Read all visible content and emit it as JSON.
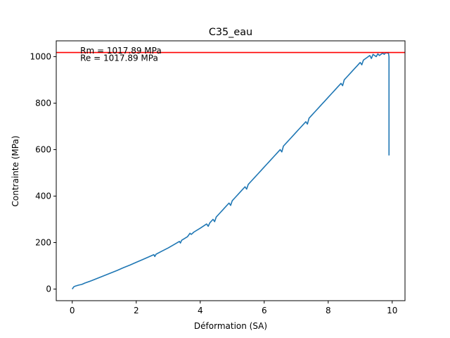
{
  "chart_data": {
    "type": "line",
    "title": "C35_eau",
    "xlabel": "Déformation (SA)",
    "ylabel": "Contrainte (MPa)",
    "xlim": [
      -0.5,
      10.4
    ],
    "ylim": [
      -50,
      1068
    ],
    "x_ticks": [
      0,
      2,
      4,
      6,
      8,
      10
    ],
    "y_ticks": [
      0,
      200,
      400,
      600,
      800,
      1000
    ],
    "grid": false,
    "colors": {
      "series": "#1f77b4",
      "rm_line": "#ff0000"
    },
    "series": [
      {
        "x": [
          0,
          0.05,
          0.1,
          0.2,
          0.3,
          0.4,
          0.6,
          0.8,
          1.0,
          1.2,
          1.4,
          1.6,
          1.8,
          2.0,
          2.2,
          2.4,
          2.55,
          2.58,
          2.62,
          2.8,
          3.0,
          3.2,
          3.35,
          3.38,
          3.42,
          3.6,
          3.68,
          3.72,
          3.8,
          4.0,
          4.2,
          4.25,
          4.3,
          4.4,
          4.45,
          4.5,
          4.6,
          4.7,
          4.8,
          4.9,
          4.95,
          5.0,
          5.1,
          5.2,
          5.3,
          5.4,
          5.45,
          5.5,
          5.6,
          5.7,
          5.8,
          5.9,
          6.0,
          6.1,
          6.2,
          6.3,
          6.4,
          6.5,
          6.55,
          6.6,
          6.7,
          6.8,
          6.9,
          7.0,
          7.1,
          7.2,
          7.3,
          7.35,
          7.4,
          7.5,
          7.6,
          7.7,
          7.8,
          7.9,
          8.0,
          8.1,
          8.2,
          8.3,
          8.4,
          8.45,
          8.5,
          8.6,
          8.7,
          8.8,
          8.9,
          9.0,
          9.05,
          9.1,
          9.2,
          9.3,
          9.35,
          9.4,
          9.5,
          9.55,
          9.6,
          9.7,
          9.75,
          9.8,
          9.85,
          9.88,
          9.9,
          9.9
        ],
        "y": [
          0,
          10,
          13,
          17,
          20,
          26,
          36,
          47,
          58,
          69,
          80,
          92,
          103,
          115,
          127,
          139,
          148,
          140,
          150,
          163,
          177,
          193,
          205,
          198,
          210,
          225,
          240,
          235,
          245,
          262,
          280,
          270,
          285,
          300,
          290,
          310,
          325,
          340,
          355,
          370,
          360,
          380,
          395,
          410,
          425,
          440,
          430,
          450,
          465,
          480,
          495,
          510,
          525,
          540,
          555,
          570,
          585,
          600,
          590,
          615,
          630,
          645,
          660,
          675,
          690,
          705,
          720,
          710,
          735,
          750,
          765,
          780,
          795,
          810,
          825,
          840,
          855,
          870,
          885,
          875,
          900,
          915,
          930,
          945,
          960,
          975,
          965,
          985,
          995,
          1005,
          992,
          1010,
          1000,
          1012,
          1005,
          1015,
          1010,
          1017,
          1015,
          1017.89,
          1000,
          575
        ]
      }
    ],
    "reference_line": {
      "orientation": "horizontal",
      "y": 1017.89
    },
    "annotations": [
      {
        "text": "Rm = 1017.89 MPa",
        "x": 0.25,
        "y": 1026
      },
      {
        "text": "Re = 1017.89 MPa",
        "x": 0.25,
        "y": 994
      }
    ]
  }
}
